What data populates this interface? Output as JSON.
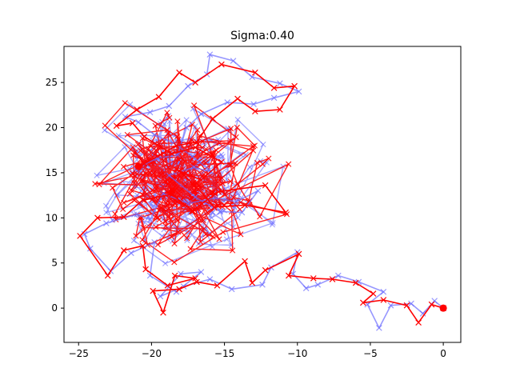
{
  "chart_data": {
    "type": "line",
    "title": "Sigma:0.40",
    "xlabel": "",
    "ylabel": "",
    "xlim": [
      -26.0,
      1.2
    ],
    "ylim": [
      -3.8,
      29.0
    ],
    "xticks": [
      -25,
      -20,
      -15,
      -10,
      -5,
      0
    ],
    "yticks": [
      0,
      5,
      10,
      15,
      20,
      25
    ],
    "grid": false,
    "colors": {
      "series_a": "#6b6bff",
      "series_b": "#ff0000",
      "axes": "#000000"
    },
    "series": [
      {
        "marker": "x",
        "values": [
          [
            0.0,
            0.0
          ],
          [
            -0.6,
            0.8
          ],
          [
            -1.4,
            -0.6
          ],
          [
            -2.2,
            0.5
          ],
          [
            -3.6,
            0.3
          ],
          [
            -4.4,
            -2.2
          ],
          [
            -5.2,
            0.4
          ],
          [
            -4.1,
            1.8
          ],
          [
            -5.8,
            2.9
          ],
          [
            -7.2,
            3.6
          ],
          [
            -8.6,
            2.6
          ],
          [
            -9.4,
            2.2
          ],
          [
            -10.3,
            3.8
          ],
          [
            -10.0,
            6.2
          ],
          [
            -11.8,
            4.5
          ],
          [
            -12.4,
            2.6
          ],
          [
            -14.5,
            2.1
          ],
          [
            -16.0,
            3.2
          ],
          [
            -17.8,
            2.4
          ],
          [
            -19.4,
            1.3
          ],
          [
            -18.0,
            3.8
          ],
          [
            -16.6,
            4.0
          ],
          [
            -18.3,
            1.8
          ],
          [
            -20.1,
            3.6
          ],
          [
            -19.8,
            7.3
          ],
          [
            -21.4,
            6.1
          ],
          [
            -22.8,
            4.1
          ],
          [
            -24.2,
            6.6
          ],
          [
            -24.6,
            8.2
          ],
          [
            -23.1,
            9.4
          ],
          [
            -21.0,
            10.4
          ],
          [
            -20.1,
            9.8
          ],
          [
            -19.2,
            12.7
          ],
          [
            -17.5,
            11.6
          ],
          [
            -15.6,
            12.2
          ],
          [
            -14.2,
            11.8
          ],
          [
            -12.7,
            13.0
          ],
          [
            -13.8,
            10.6
          ],
          [
            -15.3,
            10.7
          ],
          [
            -17.0,
            12.3
          ],
          [
            -18.8,
            14.7
          ],
          [
            -17.1,
            15.6
          ],
          [
            -15.9,
            15.1
          ],
          [
            -17.2,
            16.8
          ],
          [
            -18.5,
            18.3
          ],
          [
            -19.8,
            19.2
          ],
          [
            -20.9,
            20.6
          ],
          [
            -21.8,
            21.2
          ],
          [
            -20.1,
            21.7
          ],
          [
            -18.8,
            22.4
          ],
          [
            -17.5,
            24.6
          ],
          [
            -16.2,
            25.9
          ],
          [
            -16.0,
            28.1
          ],
          [
            -14.4,
            27.4
          ],
          [
            -13.1,
            25.6
          ],
          [
            -11.2,
            24.9
          ],
          [
            -9.9,
            24.0
          ],
          [
            -11.6,
            23.3
          ],
          [
            -13.0,
            22.6
          ],
          [
            -14.8,
            22.8
          ],
          [
            -16.6,
            21.5
          ],
          [
            -17.6,
            20.0
          ],
          [
            -18.2,
            17.0
          ],
          [
            -19.6,
            16.6
          ],
          [
            -20.8,
            15.7
          ],
          [
            -21.1,
            15.4
          ]
        ]
      },
      {
        "marker": "x",
        "values": [
          [
            0.0,
            0.0
          ],
          [
            -0.8,
            0.4
          ],
          [
            -1.7,
            -1.6
          ],
          [
            -2.5,
            0.3
          ],
          [
            -4.1,
            0.9
          ],
          [
            -5.5,
            0.6
          ],
          [
            -4.8,
            1.6
          ],
          [
            -6.0,
            2.8
          ],
          [
            -7.6,
            3.2
          ],
          [
            -8.9,
            3.3
          ],
          [
            -10.6,
            3.6
          ],
          [
            -9.9,
            6.0
          ],
          [
            -12.2,
            4.2
          ],
          [
            -13.1,
            2.8
          ],
          [
            -13.6,
            5.2
          ],
          [
            -15.5,
            2.5
          ],
          [
            -16.9,
            2.9
          ],
          [
            -18.1,
            2.1
          ],
          [
            -19.9,
            1.9
          ],
          [
            -19.2,
            -0.5
          ],
          [
            -18.4,
            3.6
          ],
          [
            -17.0,
            3.3
          ],
          [
            -18.9,
            2.5
          ],
          [
            -20.4,
            4.3
          ],
          [
            -20.6,
            6.9
          ],
          [
            -21.9,
            6.4
          ],
          [
            -23.0,
            3.6
          ],
          [
            -24.9,
            8.0
          ],
          [
            -23.7,
            10.0
          ],
          [
            -21.9,
            10.1
          ],
          [
            -20.6,
            12.0
          ],
          [
            -18.6,
            12.6
          ],
          [
            -17.2,
            10.8
          ],
          [
            -15.4,
            12.9
          ],
          [
            -12.2,
            13.6
          ],
          [
            -10.8,
            10.6
          ],
          [
            -13.6,
            11.4
          ],
          [
            -15.7,
            11.2
          ],
          [
            -16.8,
            13.2
          ],
          [
            -18.1,
            15.2
          ],
          [
            -16.6,
            14.2
          ],
          [
            -15.2,
            16.2
          ],
          [
            -17.0,
            17.8
          ],
          [
            -18.6,
            17.1
          ],
          [
            -20.5,
            19.0
          ],
          [
            -21.3,
            20.5
          ],
          [
            -22.4,
            20.2
          ],
          [
            -21.0,
            22.0
          ],
          [
            -19.5,
            23.4
          ],
          [
            -18.1,
            26.1
          ],
          [
            -17.0,
            25.0
          ],
          [
            -15.2,
            27.0
          ],
          [
            -12.9,
            26.1
          ],
          [
            -11.6,
            24.4
          ],
          [
            -10.2,
            24.6
          ],
          [
            -11.2,
            22.0
          ],
          [
            -12.9,
            21.8
          ],
          [
            -14.1,
            23.2
          ],
          [
            -15.8,
            21.0
          ],
          [
            -16.9,
            18.4
          ],
          [
            -18.3,
            18.0
          ],
          [
            -19.4,
            17.0
          ],
          [
            -20.5,
            16.0
          ],
          [
            -20.9,
            15.7
          ]
        ]
      }
    ],
    "endpoint_markers": [
      {
        "x": 0.0,
        "y": 0.0
      },
      {
        "x": -20.9,
        "y": 15.7
      }
    ]
  }
}
